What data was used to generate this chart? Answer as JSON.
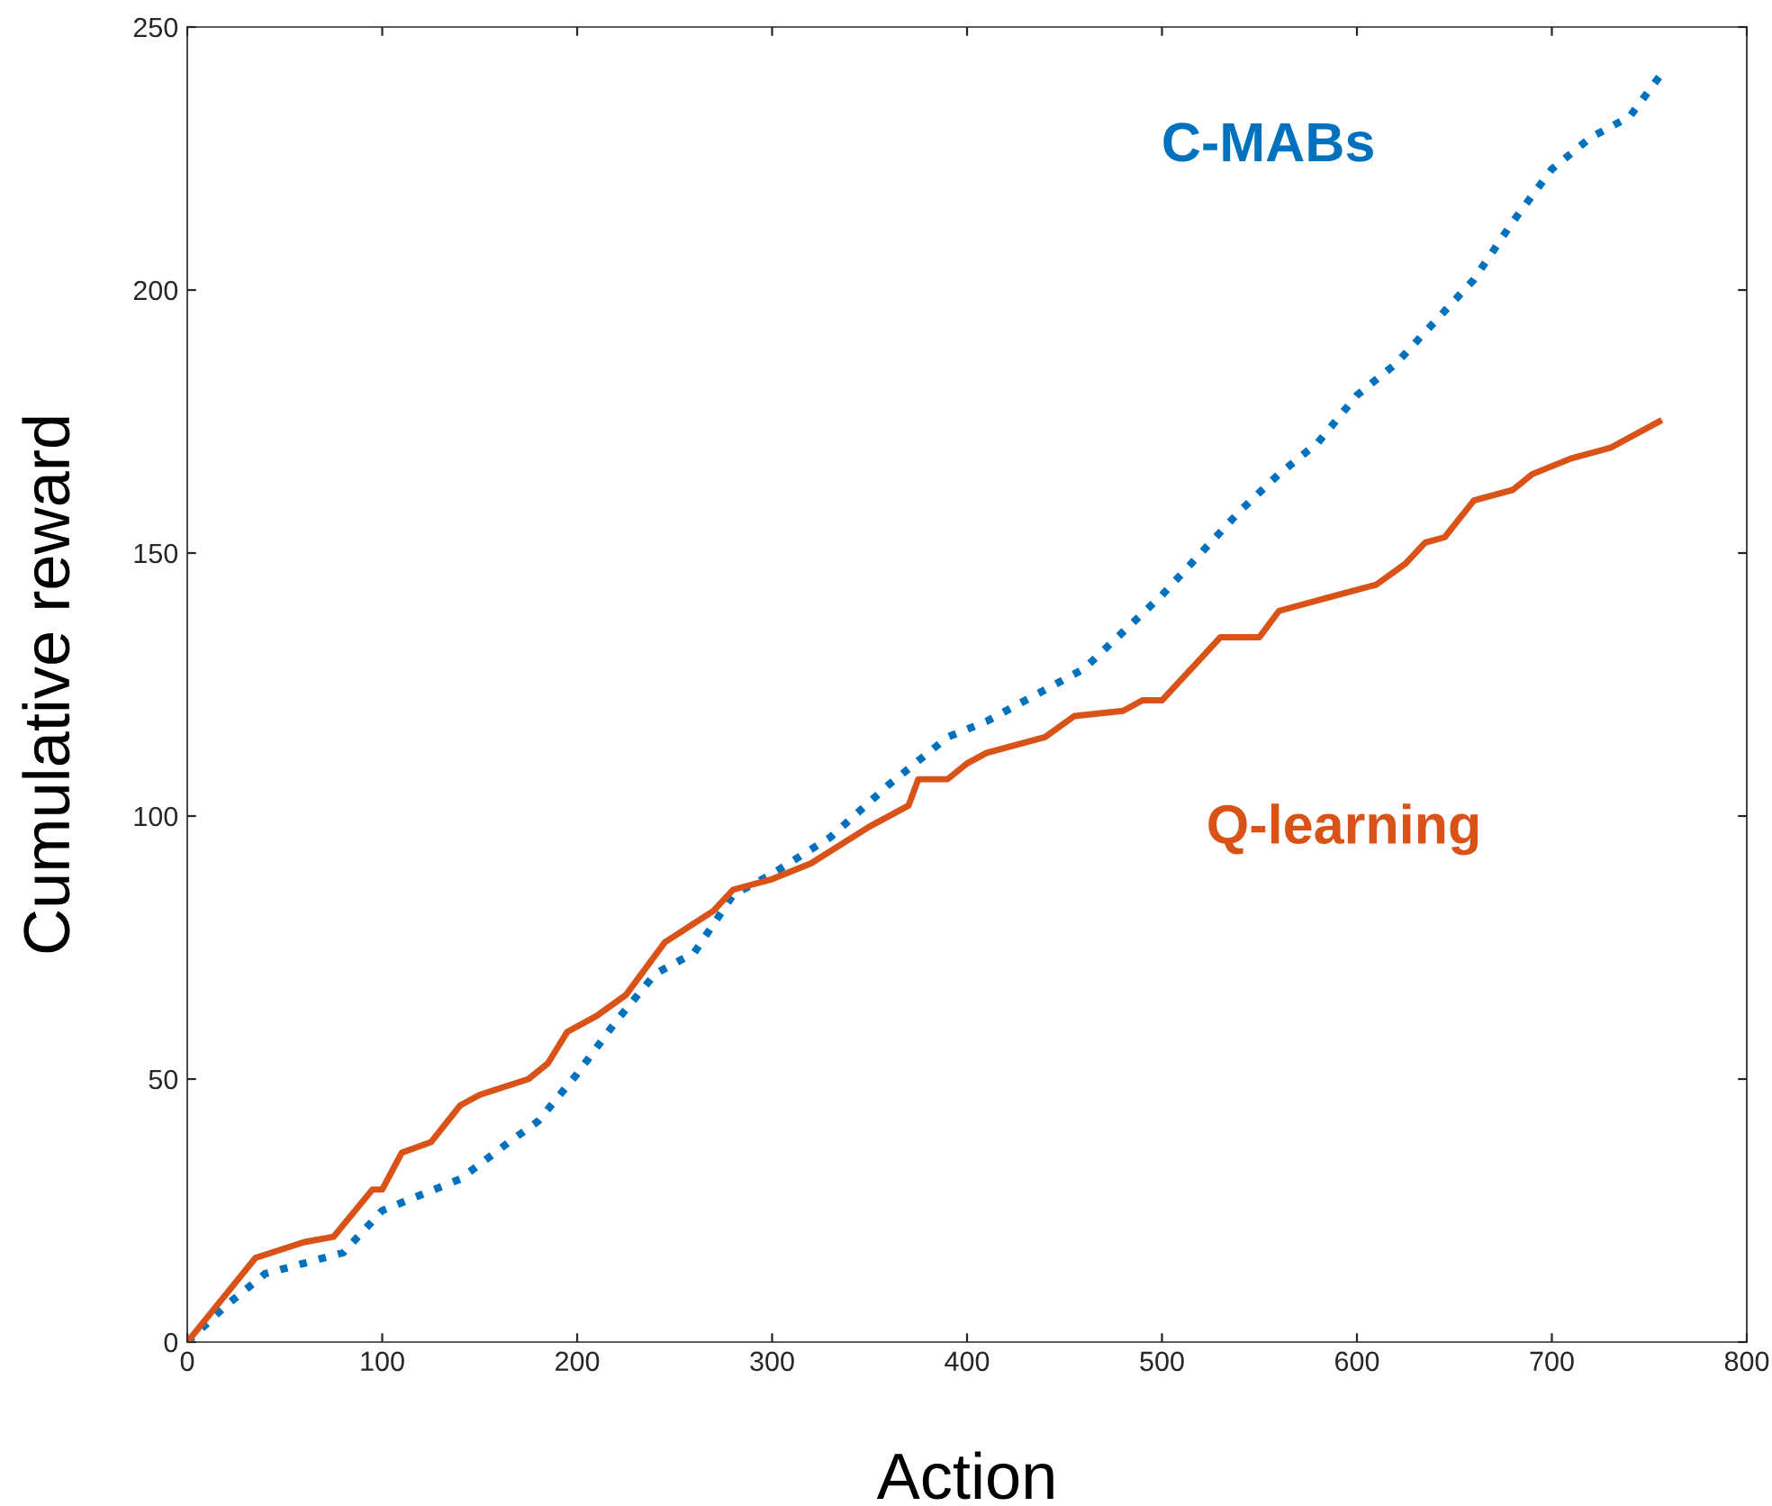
{
  "chart_data": {
    "type": "line",
    "xlabel": "Action",
    "ylabel": "Cumulative reward",
    "xlim": [
      0,
      800
    ],
    "ylim": [
      0,
      250
    ],
    "xticks": [
      0,
      100,
      200,
      300,
      400,
      500,
      600,
      700,
      800
    ],
    "yticks": [
      0,
      50,
      100,
      150,
      200,
      250
    ],
    "grid": false,
    "legend": false,
    "series": [
      {
        "name": "C-MABs",
        "color": "#0072bd",
        "line_style": "dotted",
        "x": [
          0,
          20,
          40,
          60,
          80,
          100,
          120,
          140,
          165,
          180,
          200,
          220,
          240,
          260,
          280,
          300,
          330,
          360,
          390,
          410,
          430,
          460,
          480,
          500,
          520,
          540,
          560,
          580,
          600,
          620,
          640,
          660,
          680,
          700,
          720,
          740,
          756
        ],
        "values": [
          0,
          7,
          13,
          15,
          17,
          25,
          28,
          31,
          38,
          42,
          51,
          61,
          70,
          74,
          85,
          89,
          96,
          106,
          115,
          118,
          122,
          128,
          135,
          142,
          150,
          158,
          165,
          171,
          180,
          186,
          194,
          202,
          213,
          223,
          229,
          233,
          241
        ]
      },
      {
        "name": "Q-learning",
        "color": "#d95319",
        "line_style": "solid",
        "x": [
          0,
          35,
          60,
          75,
          95,
          100,
          110,
          125,
          140,
          150,
          175,
          185,
          195,
          210,
          225,
          245,
          270,
          280,
          300,
          320,
          350,
          370,
          375,
          390,
          400,
          410,
          440,
          455,
          480,
          490,
          500,
          520,
          530,
          550,
          560,
          590,
          610,
          625,
          635,
          645,
          660,
          680,
          690,
          710,
          730,
          755
        ],
        "values": [
          0,
          16,
          19,
          20,
          29,
          29,
          36,
          38,
          45,
          47,
          50,
          53,
          59,
          62,
          66,
          76,
          82,
          86,
          88,
          91,
          98,
          102,
          107,
          107,
          110,
          112,
          115,
          119,
          120,
          122,
          122,
          130,
          134,
          134,
          139,
          142,
          144,
          148,
          152,
          153,
          160,
          162,
          165,
          168,
          170,
          175
        ]
      }
    ]
  }
}
